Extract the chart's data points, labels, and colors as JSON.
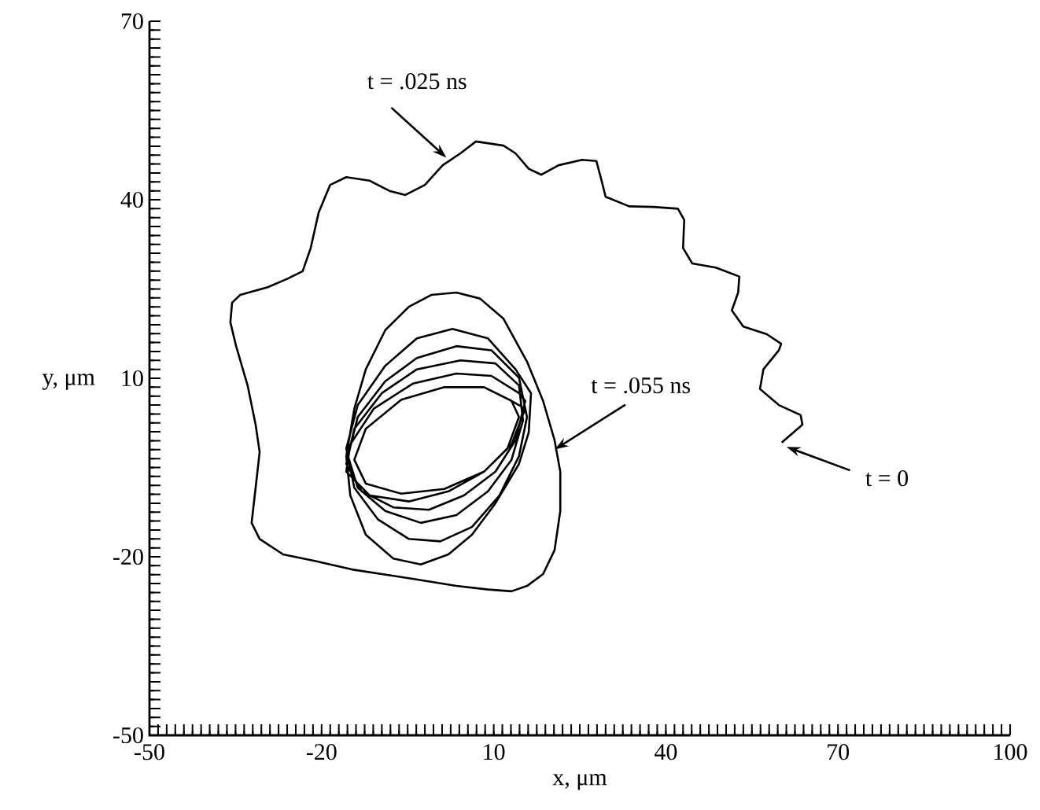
{
  "chart_data": {
    "type": "line",
    "xlabel": "x, μm",
    "ylabel": "y, μm",
    "xlim": [
      -50,
      100
    ],
    "ylim": [
      -50,
      70
    ],
    "xticks": [
      -50,
      {
        "value": -48.5,
        "label": null
      },
      {
        "value": -47,
        "label": null
      },
      {
        "value": -45.5,
        "label": null
      },
      {
        "value": -44,
        "label": null
      },
      {
        "value": -42.5,
        "label": null
      },
      {
        "value": -41,
        "label": null
      },
      {
        "value": -39.5,
        "label": null
      },
      {
        "value": -38,
        "label": null
      },
      {
        "value": -36.5,
        "label": null
      },
      {
        "value": -35,
        "label": null
      },
      {
        "value": -33.5,
        "label": null
      },
      {
        "value": -32,
        "label": null
      },
      {
        "value": -30.5,
        "label": null
      },
      {
        "value": -29,
        "label": null
      },
      {
        "value": -27.5,
        "label": null
      },
      {
        "value": -26,
        "label": null
      },
      {
        "value": -24.5,
        "label": null
      },
      {
        "value": -23,
        "label": null
      },
      {
        "value": -21.5,
        "label": null
      },
      -20,
      {
        "value": -18.5,
        "label": null
      },
      {
        "value": -17,
        "label": null
      },
      {
        "value": -15.5,
        "label": null
      },
      {
        "value": -14,
        "label": null
      },
      {
        "value": -12.5,
        "label": null
      },
      {
        "value": -11,
        "label": null
      },
      {
        "value": -9.5,
        "label": null
      },
      {
        "value": -8,
        "label": null
      },
      {
        "value": -6.5,
        "label": null
      },
      {
        "value": -5,
        "label": null
      },
      {
        "value": -3.5,
        "label": null
      },
      {
        "value": -2,
        "label": null
      },
      {
        "value": -0.5,
        "label": null
      },
      {
        "value": 1,
        "label": null
      },
      {
        "value": 2.5,
        "label": null
      },
      {
        "value": 4,
        "label": null
      },
      {
        "value": 5.5,
        "label": null
      },
      {
        "value": 7,
        "label": null
      },
      {
        "value": 8.5,
        "label": null
      },
      10,
      {
        "value": 11.5,
        "label": null
      },
      {
        "value": 13,
        "label": null
      },
      {
        "value": 14.5,
        "label": null
      },
      {
        "value": 16,
        "label": null
      },
      {
        "value": 17.5,
        "label": null
      },
      {
        "value": 19,
        "label": null
      },
      {
        "value": 20.5,
        "label": null
      },
      {
        "value": 22,
        "label": null
      },
      {
        "value": 23.5,
        "label": null
      },
      {
        "value": 25,
        "label": null
      },
      {
        "value": 26.5,
        "label": null
      },
      {
        "value": 28,
        "label": null
      },
      {
        "value": 29.5,
        "label": null
      },
      {
        "value": 31,
        "label": null
      },
      {
        "value": 32.5,
        "label": null
      },
      {
        "value": 34,
        "label": null
      },
      {
        "value": 35.5,
        "label": null
      },
      {
        "value": 37,
        "label": null
      },
      {
        "value": 38.5,
        "label": null
      },
      40,
      {
        "value": 41.5,
        "label": null
      },
      {
        "value": 43,
        "label": null
      },
      {
        "value": 44.5,
        "label": null
      },
      {
        "value": 46,
        "label": null
      },
      {
        "value": 47.5,
        "label": null
      },
      {
        "value": 49,
        "label": null
      },
      {
        "value": 50.5,
        "label": null
      },
      {
        "value": 52,
        "label": null
      },
      {
        "value": 53.5,
        "label": null
      },
      {
        "value": 55,
        "label": null
      },
      {
        "value": 56.5,
        "label": null
      },
      {
        "value": 58,
        "label": null
      },
      {
        "value": 59.5,
        "label": null
      },
      {
        "value": 61,
        "label": null
      },
      {
        "value": 62.5,
        "label": null
      },
      {
        "value": 64,
        "label": null
      },
      {
        "value": 65.5,
        "label": null
      },
      {
        "value": 67,
        "label": null
      },
      {
        "value": 68.5,
        "label": null
      },
      70,
      {
        "value": 71.5,
        "label": null
      },
      {
        "value": 73,
        "label": null
      },
      {
        "value": 74.5,
        "label": null
      },
      {
        "value": 76,
        "label": null
      },
      {
        "value": 77.5,
        "label": null
      },
      {
        "value": 79,
        "label": null
      },
      {
        "value": 80.5,
        "label": null
      },
      {
        "value": 82,
        "label": null
      },
      {
        "value": 83.5,
        "label": null
      },
      {
        "value": 85,
        "label": null
      },
      {
        "value": 86.5,
        "label": null
      },
      {
        "value": 88,
        "label": null
      },
      {
        "value": 89.5,
        "label": null
      },
      {
        "value": 91,
        "label": null
      },
      {
        "value": 92.5,
        "label": null
      },
      {
        "value": 94,
        "label": null
      },
      {
        "value": 95.5,
        "label": null
      },
      {
        "value": 97,
        "label": null
      },
      {
        "value": 98.5,
        "label": null
      },
      100
    ],
    "yticks": [
      -50,
      {
        "value": -48.5,
        "label": null
      },
      {
        "value": -47,
        "label": null
      },
      {
        "value": -45.5,
        "label": null
      },
      {
        "value": -44,
        "label": null
      },
      {
        "value": -42.5,
        "label": null
      },
      {
        "value": -41,
        "label": null
      },
      {
        "value": -39.5,
        "label": null
      },
      {
        "value": -38,
        "label": null
      },
      {
        "value": -36.5,
        "label": null
      },
      {
        "value": -35,
        "label": null
      },
      {
        "value": -33.5,
        "label": null
      },
      {
        "value": -32,
        "label": null
      },
      {
        "value": -30.5,
        "label": null
      },
      {
        "value": -29,
        "label": null
      },
      {
        "value": -27.5,
        "label": null
      },
      {
        "value": -26,
        "label": null
      },
      {
        "value": -24.5,
        "label": null
      },
      {
        "value": -23,
        "label": null
      },
      {
        "value": -21.5,
        "label": null
      },
      -20,
      {
        "value": -18.5,
        "label": null
      },
      {
        "value": -17,
        "label": null
      },
      {
        "value": -15.5,
        "label": null
      },
      {
        "value": -14,
        "label": null
      },
      {
        "value": -12.5,
        "label": null
      },
      {
        "value": -11,
        "label": null
      },
      {
        "value": -9.5,
        "label": null
      },
      {
        "value": -8,
        "label": null
      },
      {
        "value": -6.5,
        "label": null
      },
      {
        "value": -5,
        "label": null
      },
      {
        "value": -3.5,
        "label": null
      },
      {
        "value": -2,
        "label": null
      },
      {
        "value": -0.5,
        "label": null
      },
      {
        "value": 1,
        "label": null
      },
      {
        "value": 2.5,
        "label": null
      },
      {
        "value": 4,
        "label": null
      },
      {
        "value": 5.5,
        "label": null
      },
      {
        "value": 7,
        "label": null
      },
      {
        "value": 8.5,
        "label": null
      },
      10,
      {
        "value": 11.5,
        "label": null
      },
      {
        "value": 13,
        "label": null
      },
      {
        "value": 14.5,
        "label": null
      },
      {
        "value": 16,
        "label": null
      },
      {
        "value": 17.5,
        "label": null
      },
      {
        "value": 19,
        "label": null
      },
      {
        "value": 20.5,
        "label": null
      },
      {
        "value": 22,
        "label": null
      },
      {
        "value": 23.5,
        "label": null
      },
      {
        "value": 25,
        "label": null
      },
      {
        "value": 26.5,
        "label": null
      },
      {
        "value": 28,
        "label": null
      },
      {
        "value": 29.5,
        "label": null
      },
      {
        "value": 31,
        "label": null
      },
      {
        "value": 32.5,
        "label": null
      },
      {
        "value": 34,
        "label": null
      },
      {
        "value": 35.5,
        "label": null
      },
      {
        "value": 37,
        "label": null
      },
      {
        "value": 38.5,
        "label": null
      },
      40,
      {
        "value": 41.5,
        "label": null
      },
      {
        "value": 43,
        "label": null
      },
      {
        "value": 44.5,
        "label": null
      },
      {
        "value": 46,
        "label": null
      },
      {
        "value": 47.5,
        "label": null
      },
      {
        "value": 49,
        "label": null
      },
      {
        "value": 50.5,
        "label": null
      },
      {
        "value": 52,
        "label": null
      },
      {
        "value": 53.5,
        "label": null
      },
      {
        "value": 55,
        "label": null
      },
      {
        "value": 56.5,
        "label": null
      },
      {
        "value": 58,
        "label": null
      },
      {
        "value": 59.5,
        "label": null
      },
      {
        "value": 61,
        "label": null
      },
      {
        "value": 62.5,
        "label": null
      },
      {
        "value": 64,
        "label": null
      },
      {
        "value": 65.5,
        "label": null
      },
      {
        "value": 67,
        "label": null
      },
      {
        "value": 68.5,
        "label": null
      },
      70
    ],
    "annotations": [
      "t = .025 ns",
      {
        "text": "t = .055 ns",
        "x": 20.6,
        "y": -2.0
      },
      "t = 0"
    ],
    "series": [
      {
        "color": "#000000",
        "x": [
          60.2,
          63.8,
          63.5,
          59.7,
          56.4,
          57.0,
          59.7,
          60.1,
          57.6,
          53.5,
          51.5,
          52.6,
          52.8,
          48.7,
          44.6,
          43.0,
          43.2,
          42.1,
          37.8,
          33.6,
          29.5,
          28.8,
          27.9,
          25.4,
          21.3,
          18.3,
          16.1,
          13.8,
          11.7,
          6.9,
          4.2,
          1.1,
          -2.0,
          -5.4,
          -8.2,
          -11.6,
          -15.7,
          -18.5,
          -20.5,
          -21.9,
          -23.3,
          -26.0,
          -29.4,
          -34.2,
          -35.6,
          -35.9,
          -34.9,
          -32.9,
          -31.5,
          -30.8,
          -31.5,
          -32.2,
          -30.8,
          -26.7,
          -21.2,
          -14.3,
          -4.8,
          3.5,
          9.0,
          13.1,
          15.8,
          18.6,
          20.6,
          21.6,
          21.6,
          20.6,
          18.6,
          15.8,
          11.7,
          7.6,
          3.5,
          -0.9,
          -4.8,
          -8.9,
          -12.3,
          -14.3,
          -15.7,
          -15.0,
          -12.3,
          -7.5,
          -2.7,
          2.1,
          6.2,
          10.3,
          14.4,
          16.1,
          16.5,
          13.8,
          9.0,
          2.8,
          -3.4,
          -8.9,
          -13.7,
          -15.7,
          -14.3,
          -10.2,
          -4.8,
          0.7,
          6.2,
          11.0,
          14.4,
          15.8,
          14.4,
          9.6,
          3.5,
          -3.4,
          -8.9,
          -13.7,
          -15.4,
          -13.7,
          -8.9,
          -2.7,
          3.5,
          9.0,
          13.1,
          15.1,
          14.4,
          10.3,
          4.2,
          -3.4,
          -9.5,
          -14.3,
          -15.7,
          -13.0,
          -7.5,
          -1.3,
          4.8,
          10.3,
          13.8,
          15.5,
          14.4,
          9.6,
          3.5,
          -4.1,
          -10.9,
          -15.0,
          -15.7,
          -11.6,
          -4.8,
          2.1,
          8.3,
          13.1,
          15.5,
          13.1,
          8.3,
          1.4,
          -6.1,
          -12.3,
          -14.3,
          -12.3,
          -6.1,
          1.4,
          8.3,
          12.4,
          14.4,
          13.1
        ],
        "values": [
          -0.8,
          2.2,
          3.8,
          5.5,
          8.2,
          11.5,
          14.7,
          15.8,
          17.4,
          18.7,
          21.4,
          24.4,
          27.1,
          28.6,
          29.3,
          31.9,
          36.6,
          38.5,
          38.8,
          38.9,
          40.5,
          43.2,
          46.5,
          46.7,
          45.8,
          44.2,
          45.2,
          47.8,
          49.1,
          49.8,
          47.8,
          45.8,
          42.5,
          40.8,
          41.5,
          43.2,
          43.8,
          42.5,
          37.9,
          31.9,
          28.0,
          26.7,
          25.3,
          24.0,
          22.7,
          19.4,
          15.4,
          8.8,
          2.2,
          -2.4,
          -8.4,
          -14.3,
          -17.0,
          -19.6,
          -20.7,
          -22.2,
          -23.6,
          -24.9,
          -25.5,
          -25.8,
          -24.9,
          -22.9,
          -18.9,
          -12.3,
          -5.7,
          -0.4,
          6.2,
          12.8,
          20.0,
          23.4,
          24.4,
          24.0,
          22.0,
          18.1,
          11.5,
          4.9,
          -3.1,
          -9.7,
          -16.3,
          -20.3,
          -21.3,
          -19.6,
          -16.3,
          -11.0,
          -4.4,
          0.9,
          7.5,
          11.5,
          16.7,
          18.3,
          16.7,
          12.1,
          5.5,
          -1.8,
          -8.4,
          -13.7,
          -17.0,
          -17.4,
          -15.0,
          -9.7,
          -3.1,
          3.5,
          10.1,
          14.7,
          15.4,
          13.4,
          9.5,
          3.5,
          -3.1,
          -8.4,
          -12.3,
          -14.3,
          -13.0,
          -9.0,
          -3.7,
          2.9,
          8.8,
          12.5,
          13.0,
          11.5,
          7.5,
          1.5,
          -4.4,
          -9.0,
          -11.7,
          -12.1,
          -9.7,
          -5.7,
          -0.4,
          6.2,
          7.5,
          10.4,
          10.8,
          9.1,
          4.9,
          -1.1,
          -5.7,
          -9.7,
          -10.7,
          -9.0,
          -5.7,
          -1.1,
          4.9,
          6.2,
          8.5,
          8.5,
          6.4,
          1.5,
          -3.7,
          -7.7,
          -9.4,
          -8.6,
          -5.7,
          -1.8,
          3.5,
          6.2
        ]
      }
    ]
  }
}
